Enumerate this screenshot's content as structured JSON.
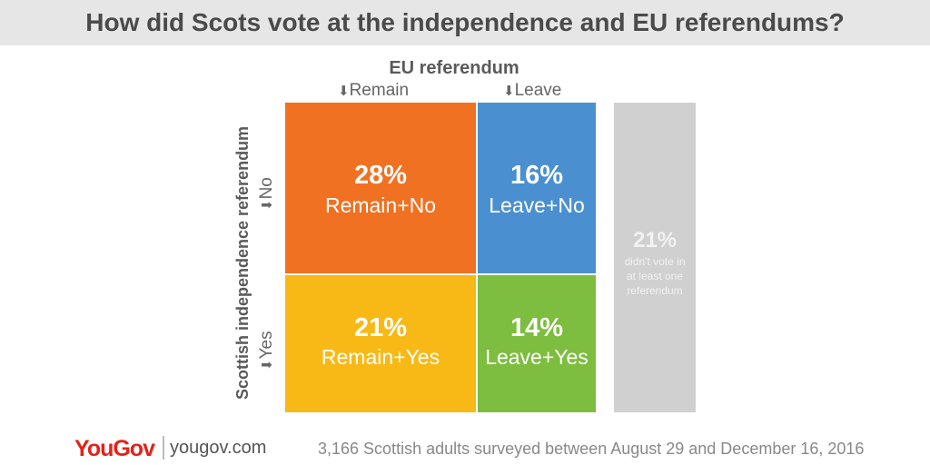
{
  "title": "How did Scots vote at the independence and EU referendums?",
  "chart_data": {
    "type": "heatmap",
    "title": "How did Scots vote at the independence and EU referendums?",
    "x_axis_label": "EU referendum",
    "y_axis_label": "Scottish independence referendum",
    "columns": [
      "Remain",
      "Leave"
    ],
    "rows": [
      "No",
      "Yes"
    ],
    "cells": [
      {
        "row": "No",
        "column": "Remain",
        "value": 28,
        "display": "28%",
        "label": "Remain+No",
        "color": "#f07122"
      },
      {
        "row": "No",
        "column": "Leave",
        "value": 16,
        "display": "16%",
        "label": "Leave+No",
        "color": "#4a90d0"
      },
      {
        "row": "Yes",
        "column": "Remain",
        "value": 21,
        "display": "21%",
        "label": "Remain+Yes",
        "color": "#f8b916"
      },
      {
        "row": "Yes",
        "column": "Leave",
        "value": 14,
        "display": "14%",
        "label": "Leave+Yes",
        "color": "#7dbd3f"
      }
    ],
    "other": {
      "value": 21,
      "display": "21%",
      "label": "didn't vote in at least one referendum",
      "color": "#d0d0d0"
    }
  },
  "footer": {
    "logo": "YouGov",
    "url": "yougov.com",
    "note": "3,166 Scottish adults surveyed between August 29 and December 16, 2016"
  },
  "arrow_glyph": "⬇"
}
